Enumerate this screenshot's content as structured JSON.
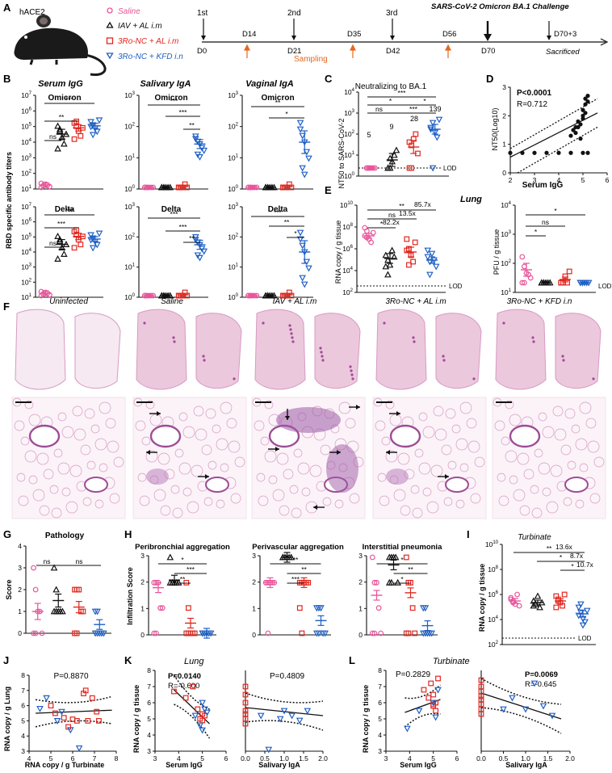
{
  "colors": {
    "saline": "#e8559a",
    "iav": "#111111",
    "ro_al": "#e0271f",
    "ro_kfd": "#1f5fc4",
    "tissue": "#d79ac3",
    "tissue_dark": "#9d4d95",
    "arrow_orange": "#e4681f"
  },
  "panel_letters": [
    "A",
    "B",
    "C",
    "D",
    "E",
    "F",
    "G",
    "H",
    "I",
    "J",
    "K",
    "L"
  ],
  "schedule": {
    "mouse_label": "hACE2",
    "legend": [
      {
        "label": "Saline",
        "marker": "circle",
        "color": "#e8559a"
      },
      {
        "label": "IAV + AL i.m",
        "marker": "triangle",
        "color": "#111111"
      },
      {
        "label": "3Ro-NC + AL i.m",
        "marker": "square",
        "color": "#e0271f"
      },
      {
        "label": "3Ro-NC + KFD i.n",
        "marker": "triangle-down",
        "color": "#1f5fc4"
      }
    ],
    "doses": [
      "1st",
      "2nd",
      "3rd"
    ],
    "challenge": "SARS-CoV-2 Omicron BA.1 Challenge",
    "days_above": [
      "D14",
      "D35",
      "D56",
      "D70+3"
    ],
    "days_below": [
      "D0",
      "D21",
      "D42",
      "D70"
    ],
    "sampling": "Sampling",
    "sacrificed": "Sacrificed"
  },
  "panel_b": {
    "titles": [
      "Serum IgG",
      "Salivary IgA",
      "Vaginal IgA"
    ],
    "row_labels": [
      "Omicron",
      "Delta"
    ],
    "y_label": "RBD specific antibody titers",
    "serum_ticks": [
      "10",
      "10",
      "10",
      "10",
      "10",
      "10",
      "10"
    ],
    "serum_exps": [
      "1",
      "2",
      "3",
      "4",
      "5",
      "6",
      "7"
    ],
    "iga_ticks": [
      "10",
      "10",
      "10",
      "10"
    ],
    "iga_exps": [
      "0",
      "1",
      "2",
      "3"
    ],
    "sig": [
      "***",
      "**",
      "ns",
      "***",
      "***",
      "**",
      "**",
      "*"
    ]
  },
  "panel_c": {
    "title": "Neutralizing to BA.1",
    "y_label": "NT50 to SARS-CoV-2",
    "value_labels": [
      "5",
      "9",
      "28",
      "139"
    ],
    "lod": "LOD",
    "sig": [
      "***",
      "*",
      "*",
      "ns",
      "***",
      "*"
    ]
  },
  "panel_d": {
    "p": "P<0.0001",
    "r": "R=0.712",
    "x_label": "Serum IgG",
    "y_label": "NT50(Log10)",
    "x_ticks": [
      "2",
      "3",
      "4",
      "5",
      "6"
    ]
  },
  "panel_e": {
    "title": "Lung",
    "y_label_rna": "RNA copy / g tissue",
    "y_label_pfu": "PFU / g tissue",
    "folds": [
      "85.7x",
      "13.5x",
      "82.2x"
    ],
    "sig": [
      "**",
      "ns",
      "*",
      "ns",
      "*",
      "*"
    ],
    "lod": "LOD"
  },
  "panel_f": {
    "titles": [
      "Uninfected",
      "Saline",
      "IAV + AL i.m",
      "3Ro-NC + AL i.m",
      "3Ro-NC + KFD i.n"
    ]
  },
  "panel_g": {
    "title": "Pathology",
    "y_label": "Score",
    "ticks": [
      "0",
      "1",
      "2",
      "3",
      "4"
    ],
    "sig": [
      "ns",
      "ns"
    ]
  },
  "panel_h": {
    "titles": [
      "Peribronchial aggregation",
      "Perivascular aggregation",
      "Interstitial pneumonia"
    ],
    "y_label": "Infiltration Score",
    "ticks": [
      "0",
      "1",
      "2",
      "3"
    ],
    "sig": [
      "*",
      "***",
      "**",
      "**",
      "**",
      "***",
      "*",
      "**",
      "*"
    ]
  },
  "panel_i": {
    "title": "Turbinate",
    "y_label": "RNA copy / g tissue",
    "folds": [
      "13.6x",
      "8.7x",
      "10.7x"
    ],
    "sig": [
      "**",
      "*",
      "*"
    ],
    "lod": "LOD"
  },
  "panel_j": {
    "p": "P=0.8870",
    "x_label": "RNA copy / g Turbinate",
    "y_label": "RNA copy / g Lung",
    "x_ticks": [
      "4",
      "5",
      "6",
      "7",
      "8"
    ],
    "y_ticks": [
      "3",
      "4",
      "5",
      "6",
      "7",
      "8"
    ]
  },
  "panel_k": {
    "title": "Lung",
    "left": {
      "p": "P=0.0140",
      "r": "R=-0.600",
      "x_label": "Serum IgG",
      "x_ticks": [
        "3",
        "4",
        "5",
        "6"
      ]
    },
    "right": {
      "p": "P=0.4809",
      "x_label": "Salivary IgA",
      "x_ticks": [
        "0.0",
        "0.5",
        "1.0",
        "1.5",
        "2.0"
      ]
    },
    "y_label": "RNA copy / g tissue",
    "y_ticks": [
      "3",
      "4",
      "5",
      "6",
      "7",
      "8"
    ]
  },
  "panel_l": {
    "title": "Turbinate",
    "left": {
      "p": "P=0.2829",
      "x_label": "Serum IgG",
      "x_ticks": [
        "3",
        "4",
        "5",
        "6"
      ]
    },
    "right": {
      "p": "P=0.0069",
      "r": "R=-0.645",
      "x_label": "Salivary IgA",
      "x_ticks": [
        "0.0",
        "0.5",
        "1.0",
        "1.5",
        "2.0"
      ]
    },
    "y_label": "RNA copy / g tissue",
    "y_ticks": [
      "3",
      "4",
      "5",
      "6",
      "7",
      "8"
    ]
  },
  "chart_data": [
    {
      "type": "scatter",
      "id": "D",
      "xlabel": "Serum IgG",
      "ylabel": "NT50(Log10)",
      "xlim": [
        2,
        6
      ],
      "ylim": [
        0,
        3
      ],
      "x": [
        2,
        2.5,
        3,
        3.5,
        4,
        4.5,
        4.6,
        4.7,
        4.8,
        4.9,
        5,
        5,
        5.1,
        5.1,
        5.2,
        5.2,
        4.5,
        4.8,
        5,
        5.1,
        5,
        5.2,
        4.9,
        4.7
      ],
      "y": [
        0.7,
        0.7,
        0.7,
        0.7,
        0.7,
        0.7,
        1.5,
        1.6,
        1.8,
        1.7,
        2.0,
        2.2,
        2.4,
        2.6,
        2.5,
        2.7,
        1.3,
        1.6,
        1.9,
        2.1,
        0.7,
        0.7,
        1.2,
        1.4
      ]
    },
    {
      "type": "scatter",
      "id": "J",
      "xlabel": "RNA copy / g Turbinate",
      "ylabel": "RNA copy / g Lung",
      "xlim": [
        4,
        8
      ],
      "ylim": [
        3,
        8
      ],
      "x": [
        5.0,
        5.6,
        6.0,
        6.5,
        6.7,
        6.9,
        7.2,
        5.2,
        5.8,
        6.2,
        6.6,
        7.1,
        4.5,
        4.8,
        5.3,
        5.5,
        5.9,
        6.3
      ],
      "y": [
        6.0,
        5.2,
        5.1,
        6.8,
        5.0,
        6.5,
        5.0,
        5.5,
        4.6,
        5.0,
        7.0,
        5.6,
        5.8,
        6.5,
        5.0,
        5.6,
        4.4,
        3.2
      ]
    },
    {
      "type": "scatter",
      "id": "K-left",
      "xlabel": "Serum IgG",
      "ylabel": "RNA copy / g tissue",
      "xlim": [
        3,
        6
      ],
      "ylim": [
        3,
        8
      ],
      "x": [
        3.8,
        4.3,
        4.6,
        4.8,
        5.0,
        5.0,
        4.9,
        5.1,
        5.2,
        4.9,
        5.1,
        5.0,
        4.7,
        5.0
      ],
      "y": [
        6.7,
        6.3,
        7.0,
        5.6,
        5.3,
        4.9,
        5.0,
        5.2,
        5.4,
        4.6,
        5.6,
        6.0,
        5.2,
        4.3
      ]
    },
    {
      "type": "scatter",
      "id": "K-right",
      "xlabel": "Salivary IgA",
      "ylabel": "RNA copy / g tissue",
      "xlim": [
        0,
        2
      ],
      "ylim": [
        3,
        8
      ],
      "x": [
        0,
        0,
        0,
        0,
        0,
        0,
        0,
        0.4,
        0.6,
        0.9,
        1.0,
        1.2,
        1.4,
        1.6
      ],
      "y": [
        7.0,
        6.5,
        6.0,
        5.5,
        5.3,
        5.0,
        4.7,
        5.2,
        3.1,
        5.0,
        5.5,
        5.2,
        4.9,
        5.5
      ]
    },
    {
      "type": "scatter",
      "id": "L-left",
      "xlabel": "Serum IgG",
      "ylabel": "RNA copy / g tissue",
      "xlim": [
        3,
        6
      ],
      "ylim": [
        3,
        8
      ],
      "x": [
        4.6,
        4.9,
        5.0,
        5.1,
        5.2,
        5.0,
        5.1,
        4.8,
        5.0,
        3.9,
        4.4,
        5.0,
        5.2,
        5.1
      ],
      "y": [
        6.8,
        7.2,
        6.5,
        6.0,
        7.5,
        5.8,
        5.5,
        6.3,
        5.9,
        4.4,
        5.5,
        6.0,
        6.8,
        5.1
      ]
    },
    {
      "type": "scatter",
      "id": "L-right",
      "xlabel": "Salivary IgA",
      "ylabel": "RNA copy / g tissue",
      "xlim": [
        0,
        2
      ],
      "ylim": [
        3,
        8
      ],
      "x": [
        0,
        0,
        0,
        0,
        0,
        0,
        0,
        0,
        0.5,
        0.7,
        1.0,
        1.2,
        1.4,
        1.6
      ],
      "y": [
        7.4,
        7.0,
        6.7,
        6.4,
        6.2,
        5.9,
        5.6,
        5.3,
        5.6,
        6.3,
        5.6,
        7.2,
        5.8,
        5.2
      ]
    }
  ]
}
